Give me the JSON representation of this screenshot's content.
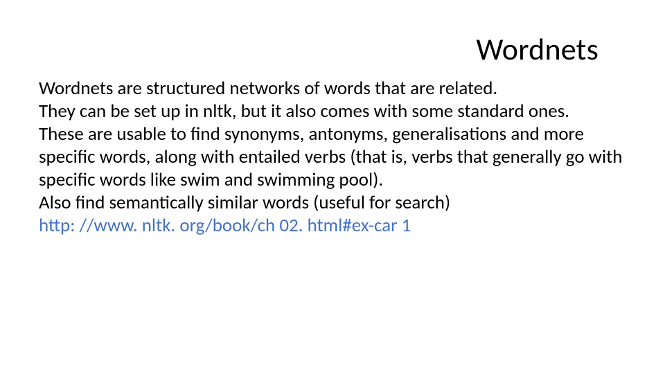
{
  "slide": {
    "title": "Wordnets",
    "title_fontsize": 44,
    "title_color": "#000000",
    "title_align": "right",
    "body_fontsize": 27,
    "body_color": "#000000",
    "link_color": "#4472c4",
    "background_color": "#ffffff",
    "paragraphs": [
      "Wordnets are structured networks of words that are related.",
      "They can be set up in nltk, but it also comes with some standard ones.",
      "These are usable to find synonyms, antonyms, generalisations and more specific words, along with entailed verbs (that is, verbs that generally go with specific words like swim and swimming pool).",
      "Also find semantically similar words (useful for search)"
    ],
    "link_text": "http: //www. nltk. org/book/ch 02. html#ex-car 1"
  }
}
